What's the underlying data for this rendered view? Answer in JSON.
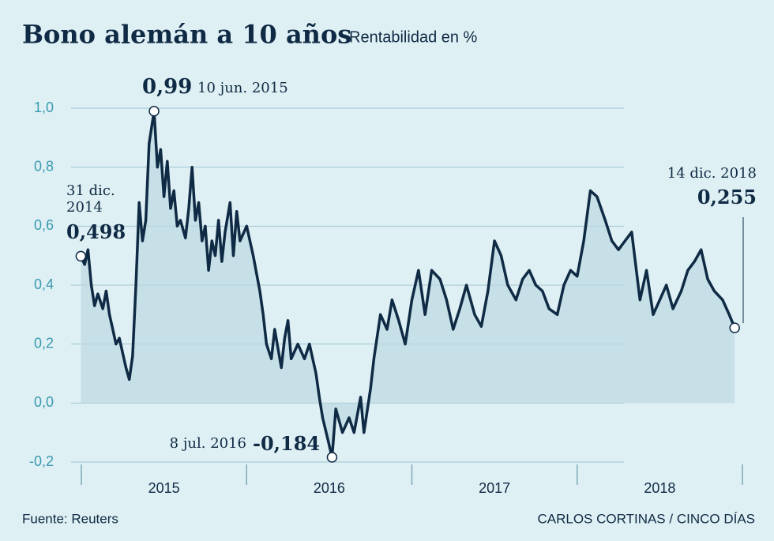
{
  "chart_data": {
    "type": "line",
    "title": "Bono alemán a 10 años",
    "subtitle": "Rentabilidad en %",
    "source": "Fuente: Reuters",
    "credit": "CARLOS CORTINAS / CINCO DÍAS",
    "color": "#0f2a44",
    "grid": true,
    "x": [
      2014.997,
      2015.02,
      2015.04,
      2015.06,
      2015.08,
      2015.1,
      2015.13,
      2015.15,
      2015.17,
      2015.19,
      2015.21,
      2015.23,
      2015.25,
      2015.27,
      2015.29,
      2015.31,
      2015.33,
      2015.35,
      2015.37,
      2015.39,
      2015.41,
      2015.44,
      2015.46,
      2015.48,
      2015.5,
      2015.52,
      2015.54,
      2015.56,
      2015.58,
      2015.6,
      2015.63,
      2015.65,
      2015.67,
      2015.69,
      2015.71,
      2015.73,
      2015.75,
      2015.77,
      2015.79,
      2015.81,
      2015.83,
      2015.85,
      2015.87,
      2015.9,
      2015.92,
      2015.94,
      2015.96,
      2016.0,
      2016.04,
      2016.08,
      2016.1,
      2016.12,
      2016.15,
      2016.17,
      2016.21,
      2016.23,
      2016.25,
      2016.27,
      2016.31,
      2016.35,
      2016.38,
      2016.42,
      2016.44,
      2016.46,
      2016.49,
      2016.517,
      2016.54,
      2016.58,
      2016.62,
      2016.65,
      2016.69,
      2016.71,
      2016.75,
      2016.77,
      2016.81,
      2016.85,
      2016.88,
      2016.92,
      2016.96,
      2017.0,
      2017.04,
      2017.08,
      2017.12,
      2017.17,
      2017.21,
      2017.25,
      2017.29,
      2017.33,
      2017.38,
      2017.42,
      2017.46,
      2017.5,
      2017.54,
      2017.58,
      2017.63,
      2017.67,
      2017.71,
      2017.75,
      2017.79,
      2017.83,
      2017.88,
      2017.92,
      2017.96,
      2018.0,
      2018.04,
      2018.08,
      2018.12,
      2018.17,
      2018.21,
      2018.25,
      2018.29,
      2018.33,
      2018.38,
      2018.42,
      2018.46,
      2018.5,
      2018.54,
      2018.58,
      2018.63,
      2018.67,
      2018.71,
      2018.75,
      2018.79,
      2018.83,
      2018.88,
      2018.92,
      2018.953
    ],
    "values": [
      0.498,
      0.47,
      0.52,
      0.4,
      0.33,
      0.37,
      0.32,
      0.38,
      0.3,
      0.25,
      0.2,
      0.22,
      0.17,
      0.12,
      0.08,
      0.16,
      0.4,
      0.68,
      0.55,
      0.62,
      0.88,
      0.99,
      0.8,
      0.86,
      0.7,
      0.82,
      0.66,
      0.72,
      0.6,
      0.62,
      0.56,
      0.66,
      0.8,
      0.62,
      0.68,
      0.55,
      0.6,
      0.45,
      0.55,
      0.5,
      0.62,
      0.48,
      0.58,
      0.68,
      0.5,
      0.65,
      0.55,
      0.6,
      0.5,
      0.38,
      0.3,
      0.2,
      0.15,
      0.25,
      0.12,
      0.22,
      0.28,
      0.15,
      0.2,
      0.15,
      0.2,
      0.1,
      0.02,
      -0.05,
      -0.12,
      -0.184,
      -0.02,
      -0.1,
      -0.05,
      -0.1,
      0.02,
      -0.1,
      0.05,
      0.15,
      0.3,
      0.25,
      0.35,
      0.28,
      0.2,
      0.35,
      0.45,
      0.3,
      0.45,
      0.42,
      0.35,
      0.25,
      0.32,
      0.4,
      0.3,
      0.26,
      0.38,
      0.55,
      0.5,
      0.4,
      0.35,
      0.42,
      0.45,
      0.4,
      0.38,
      0.32,
      0.3,
      0.4,
      0.45,
      0.43,
      0.55,
      0.72,
      0.7,
      0.62,
      0.55,
      0.52,
      0.55,
      0.58,
      0.35,
      0.45,
      0.3,
      0.35,
      0.4,
      0.32,
      0.38,
      0.45,
      0.48,
      0.52,
      0.42,
      0.38,
      0.35,
      0.3,
      0.255
    ],
    "xlim": [
      2015,
      2019
    ],
    "xtick_marks": [
      2015,
      2016,
      2017,
      2018,
      2019
    ],
    "xticks": [
      {
        "value": 2015.5,
        "label": "2015"
      },
      {
        "value": 2016.5,
        "label": "2016"
      },
      {
        "value": 2017.5,
        "label": "2017"
      },
      {
        "value": 2018.5,
        "label": "2018"
      }
    ],
    "ylim": [
      -0.2,
      1.0
    ],
    "yticks": [
      {
        "value": -0.2,
        "label": "-0,2"
      },
      {
        "value": 0,
        "label": "0,0"
      },
      {
        "value": 0.2,
        "label": "0,2"
      },
      {
        "value": 0.4,
        "label": "0,4"
      },
      {
        "value": 0.6,
        "label": "0,6"
      },
      {
        "value": 0.8,
        "label": "0,8"
      },
      {
        "value": 1.0,
        "label": "1,0"
      }
    ],
    "annotations": [
      {
        "x": 2014.997,
        "value": 0.498,
        "label": "0,498",
        "date": "31 dic. 2014"
      },
      {
        "x": 2015.44,
        "value": 0.99,
        "label": "0,99",
        "date": "10 jun. 2015"
      },
      {
        "x": 2016.517,
        "value": -0.184,
        "label": "-0,184",
        "date": "8 jul. 2016"
      },
      {
        "x": 2018.953,
        "value": 0.255,
        "label": "0,255",
        "date": "14 dic. 2018"
      }
    ]
  }
}
